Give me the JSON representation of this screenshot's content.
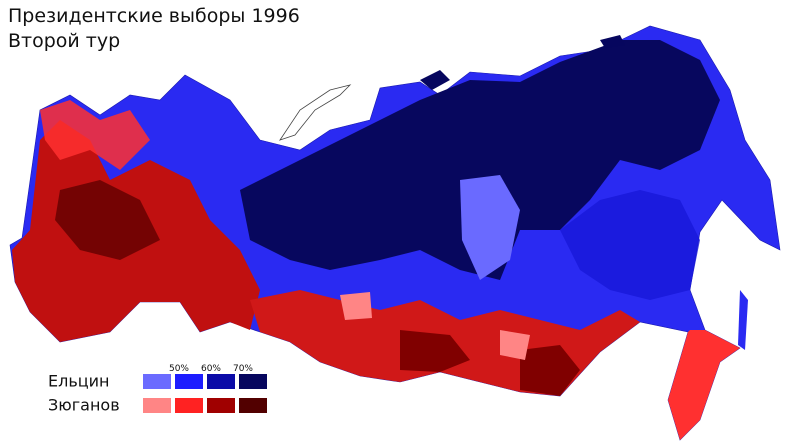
{
  "title": "Президентские выборы 1996",
  "subtitle": "Второй тур",
  "legend": {
    "thresholds": [
      "50%",
      "60%",
      "70%"
    ],
    "rows": [
      {
        "name": "Ельцин",
        "colors": [
          "#6b6bff",
          "#1c1cff",
          "#0b0ba8",
          "#06065e"
        ]
      },
      {
        "name": "Зюганов",
        "colors": [
          "#ff8585",
          "#ff2222",
          "#a00000",
          "#520000"
        ]
      }
    ]
  }
}
